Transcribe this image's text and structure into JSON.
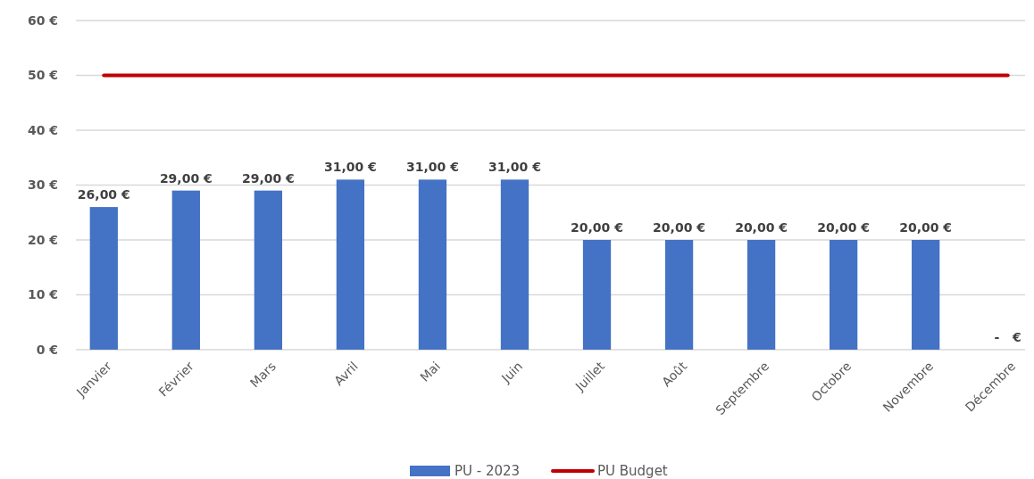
{
  "chart_data": {
    "type": "bar",
    "categories": [
      "Janvier",
      "Février",
      "Mars",
      "Avril",
      "Mai",
      "Juin",
      "Juillet",
      "Août",
      "Septembre",
      "Octobre",
      "Novembre",
      "Décembre"
    ],
    "series": [
      {
        "name": "PU - 2023",
        "color": "#4472c4",
        "values": [
          26,
          29,
          29,
          31,
          31,
          31,
          20,
          20,
          20,
          20,
          20,
          0
        ],
        "value_labels": [
          "26,00 €",
          "29,00 €",
          "29,00 €",
          "31,00 €",
          "31,00 €",
          "31,00 €",
          "20,00 €",
          "20,00 €",
          "20,00 €",
          "20,00 €",
          "20,00 €",
          "-   €"
        ]
      },
      {
        "name": "PU Budget",
        "type": "line",
        "color": "#c00000",
        "values": [
          50,
          50,
          50,
          50,
          50,
          50,
          50,
          50,
          50,
          50,
          50,
          50
        ]
      }
    ],
    "ylim": [
      0,
      60
    ],
    "yticks": [
      {
        "value": 0,
        "label": "0 €"
      },
      {
        "value": 10,
        "label": "10 €"
      },
      {
        "value": 20,
        "label": "20 €"
      },
      {
        "value": 30,
        "label": "30 €"
      },
      {
        "value": 40,
        "label": "40 €"
      },
      {
        "value": 50,
        "label": "50 €"
      },
      {
        "value": 60,
        "label": "60 €"
      }
    ],
    "grid": "y",
    "legend": "bottom",
    "marker": "none",
    "line_style": "solid"
  }
}
